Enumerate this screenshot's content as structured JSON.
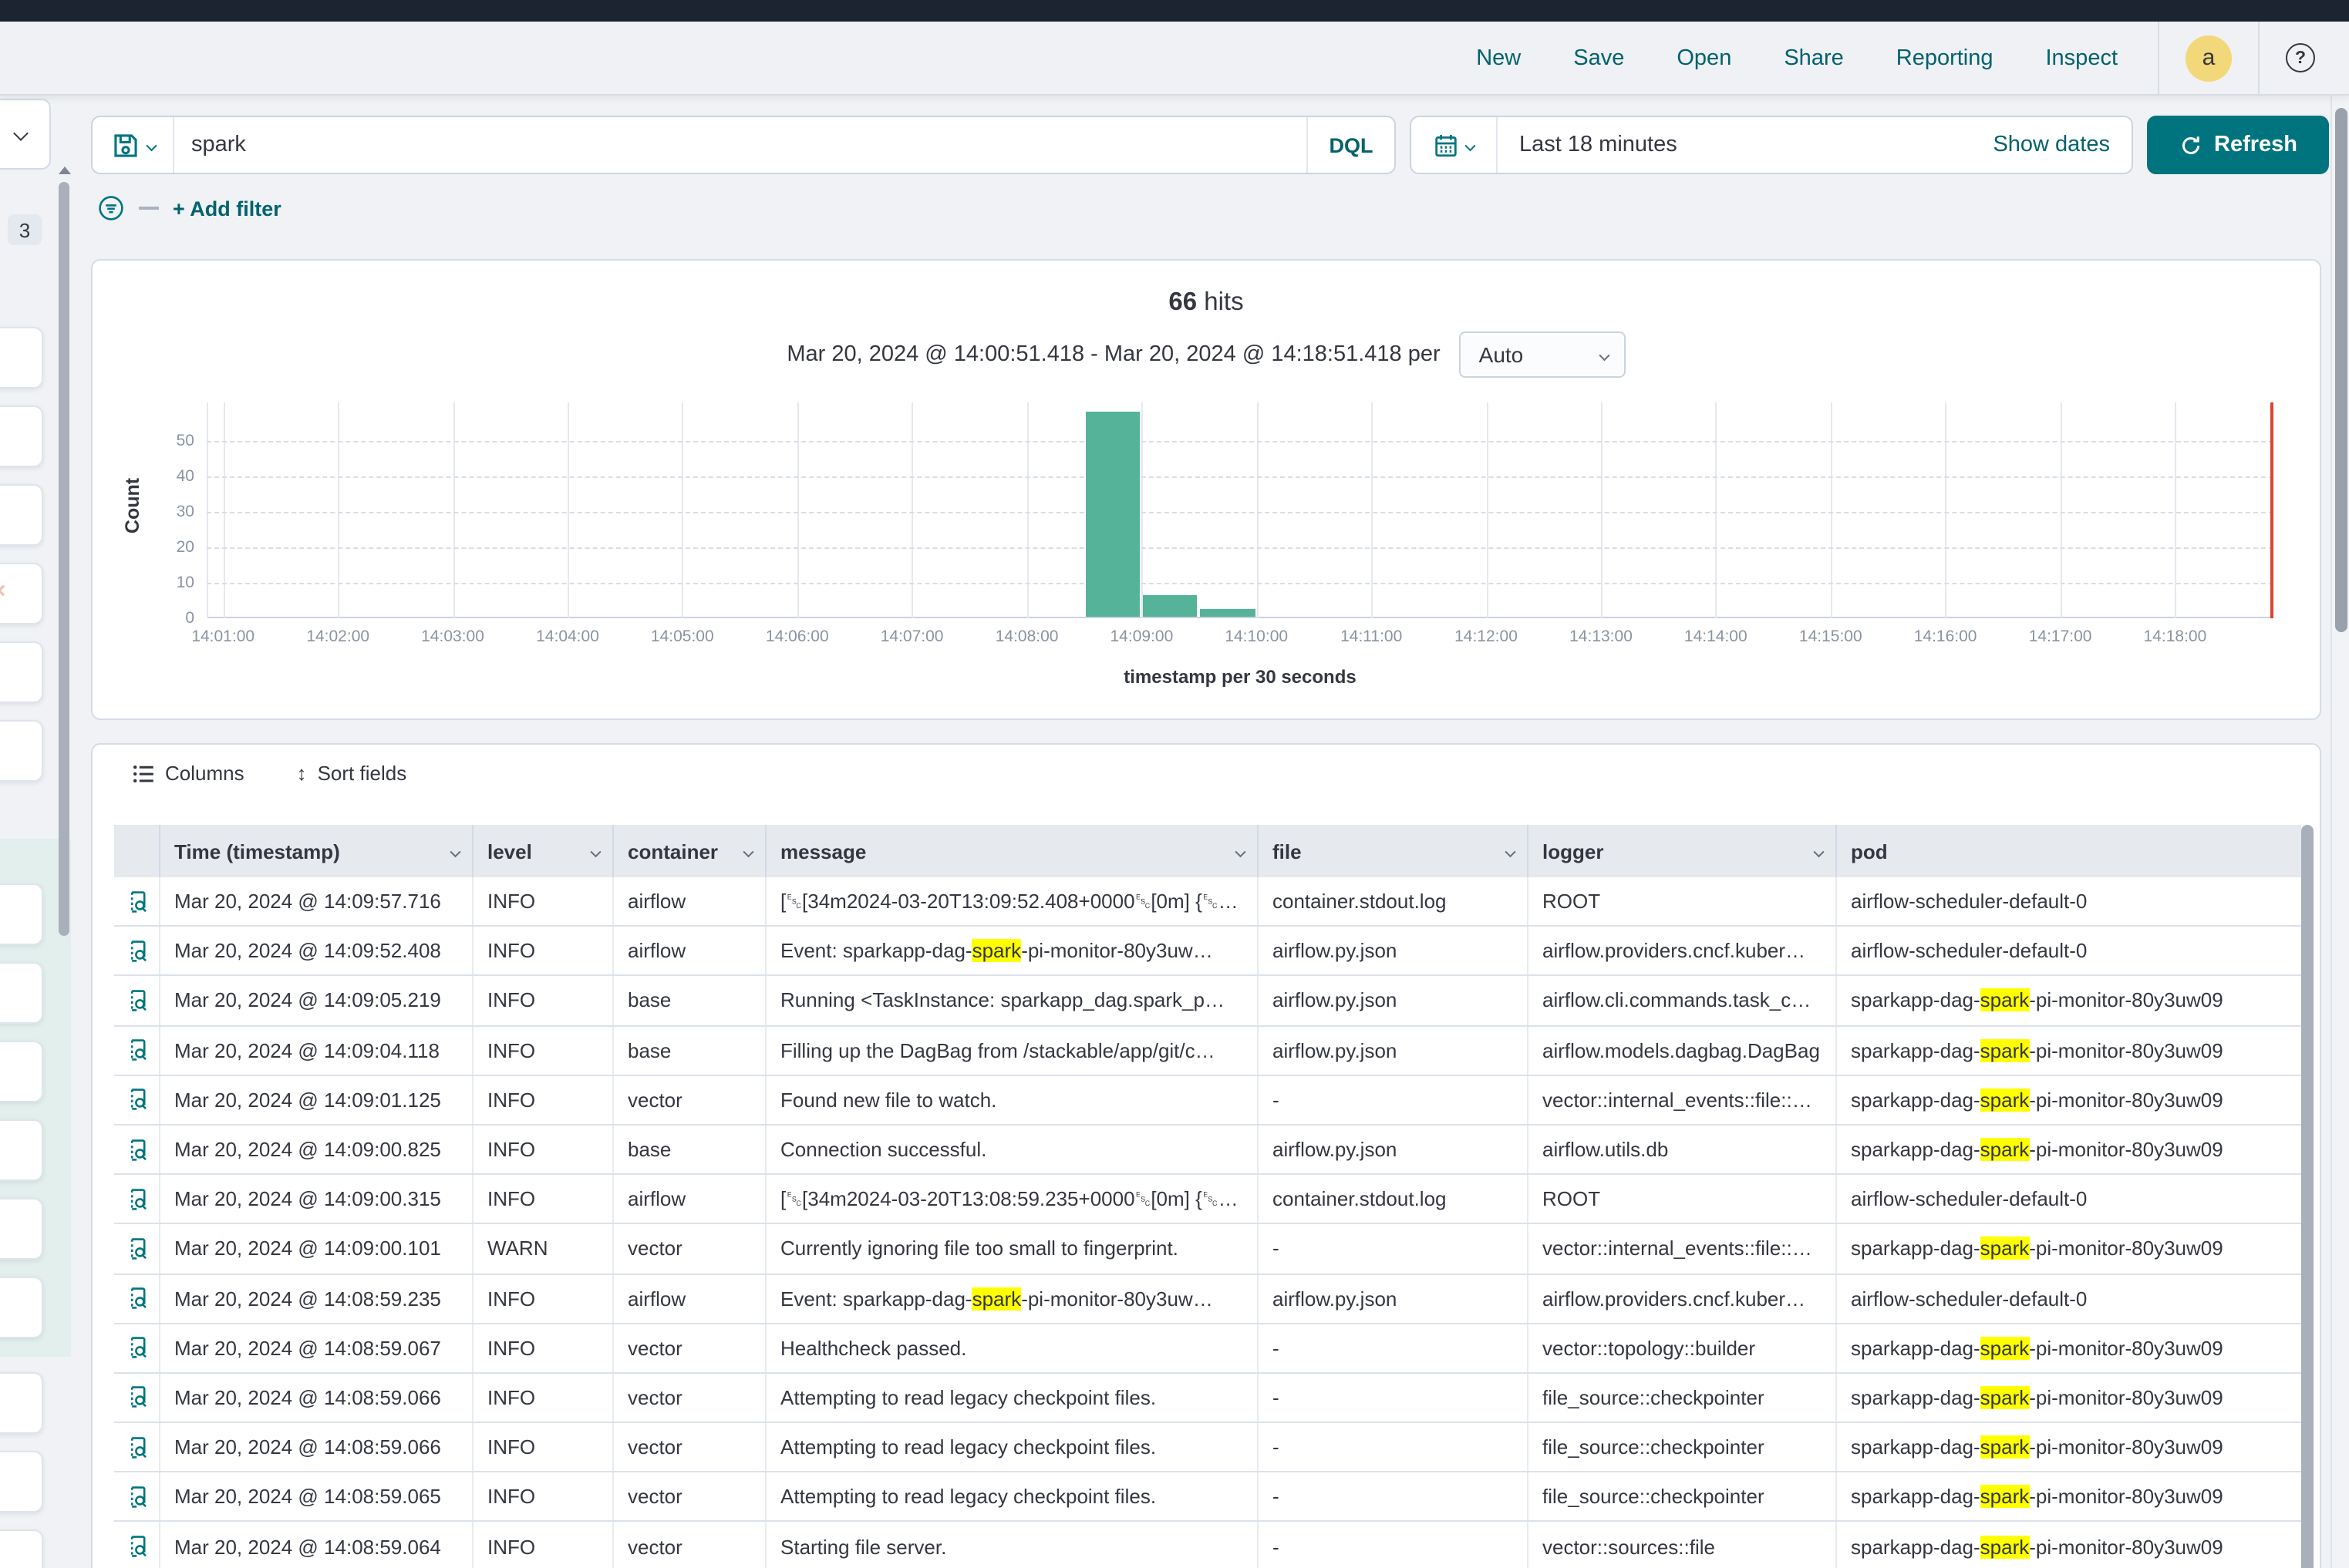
{
  "colors": {
    "accent_text": "#00626d",
    "primary_button": "#00747e",
    "bar_fill": "#54b399",
    "highlight": "#ffff00",
    "end_marker": "#e0422f",
    "titlebar": "#1b2430",
    "avatar_bg": "#f2d878"
  },
  "nav": {
    "links": [
      "New",
      "Save",
      "Open",
      "Share",
      "Reporting",
      "Inspect"
    ],
    "avatar": "a",
    "help": "?"
  },
  "search": {
    "query": "spark",
    "language_button": "DQL"
  },
  "timepicker": {
    "range_label": "Last 18 minutes",
    "show_dates_label": "Show dates",
    "refresh_label": "Refresh"
  },
  "filters": {
    "add_filter_label": "+ Add filter",
    "sidebar_badge": "3"
  },
  "histogram_header": {
    "hits_count": "66",
    "hits_word": "hits",
    "range": "Mar 20, 2024 @ 14:00:51.418 - Mar 20, 2024 @ 14:18:51.418",
    "per_word": "per",
    "interval_value": "Auto"
  },
  "chart_data": {
    "type": "bar",
    "title": "66 hits",
    "xlabel": "timestamp per 30 seconds",
    "ylabel": "Count",
    "x_start": "14:00:51.418",
    "x_end": "14:18:51.418",
    "x_ticks": [
      "14:01:00",
      "14:02:00",
      "14:03:00",
      "14:04:00",
      "14:05:00",
      "14:06:00",
      "14:07:00",
      "14:08:00",
      "14:09:00",
      "14:10:00",
      "14:11:00",
      "14:12:00",
      "14:13:00",
      "14:14:00",
      "14:15:00",
      "14:16:00",
      "14:17:00",
      "14:18:00"
    ],
    "y_ticks": [
      0,
      10,
      20,
      30,
      40,
      50
    ],
    "ylim": [
      0,
      60
    ],
    "bucket_seconds": 30,
    "buckets": [
      {
        "x": "14:08:30",
        "count": 58
      },
      {
        "x": "14:09:00",
        "count": 6
      },
      {
        "x": "14:09:30",
        "count": 2
      }
    ],
    "grid": true,
    "end_marker_at": "14:18:51.418"
  },
  "table": {
    "toolbar": {
      "columns_label": "Columns",
      "sort_label": "Sort fields"
    },
    "highlight_term": "spark",
    "columns": [
      {
        "label": "",
        "chevron": false
      },
      {
        "label": "Time (timestamp)",
        "chevron": true
      },
      {
        "label": "level",
        "chevron": true
      },
      {
        "label": "container",
        "chevron": true
      },
      {
        "label": "message",
        "chevron": true
      },
      {
        "label": "file",
        "chevron": true
      },
      {
        "label": "logger",
        "chevron": true
      },
      {
        "label": "pod",
        "chevron": false
      }
    ],
    "rows": [
      {
        "time": "Mar 20, 2024 @ 14:09:57.716",
        "level": "INFO",
        "container": "airflow",
        "message": "[␛[34m2024-03-20T13:09:52.408+0000␛[0m] {␛…",
        "file": "container.stdout.log",
        "logger": "ROOT",
        "pod": "airflow-scheduler-default-0"
      },
      {
        "time": "Mar 20, 2024 @ 14:09:52.408",
        "level": "INFO",
        "container": "airflow",
        "message": "Event: sparkapp-dag-[[spark]]-pi-monitor-80y3uw…",
        "file": "airflow.py.json",
        "logger": "airflow.providers.cncf.kuber…",
        "pod": "airflow-scheduler-default-0"
      },
      {
        "time": "Mar 20, 2024 @ 14:09:05.219",
        "level": "INFO",
        "container": "base",
        "message": "Running <TaskInstance: sparkapp_dag.spark_p…",
        "file": "airflow.py.json",
        "logger": "airflow.cli.commands.task_c…",
        "pod": "sparkapp-dag-[[spark]]-pi-monitor-80y3uw09"
      },
      {
        "time": "Mar 20, 2024 @ 14:09:04.118",
        "level": "INFO",
        "container": "base",
        "message": "Filling up the DagBag from /stackable/app/git/c…",
        "file": "airflow.py.json",
        "logger": "airflow.models.dagbag.DagBag",
        "pod": "sparkapp-dag-[[spark]]-pi-monitor-80y3uw09"
      },
      {
        "time": "Mar 20, 2024 @ 14:09:01.125",
        "level": "INFO",
        "container": "vector",
        "message": "Found new file to watch.",
        "file": "-",
        "logger": "vector::internal_events::file::…",
        "pod": "sparkapp-dag-[[spark]]-pi-monitor-80y3uw09"
      },
      {
        "time": "Mar 20, 2024 @ 14:09:00.825",
        "level": "INFO",
        "container": "base",
        "message": "Connection successful.",
        "file": "airflow.py.json",
        "logger": "airflow.utils.db",
        "pod": "sparkapp-dag-[[spark]]-pi-monitor-80y3uw09"
      },
      {
        "time": "Mar 20, 2024 @ 14:09:00.315",
        "level": "INFO",
        "container": "airflow",
        "message": "[␛[34m2024-03-20T13:08:59.235+0000␛[0m] {␛…",
        "file": "container.stdout.log",
        "logger": "ROOT",
        "pod": "airflow-scheduler-default-0"
      },
      {
        "time": "Mar 20, 2024 @ 14:09:00.101",
        "level": "WARN",
        "container": "vector",
        "message": "Currently ignoring file too small to fingerprint.",
        "file": "-",
        "logger": "vector::internal_events::file::…",
        "pod": "sparkapp-dag-[[spark]]-pi-monitor-80y3uw09"
      },
      {
        "time": "Mar 20, 2024 @ 14:08:59.235",
        "level": "INFO",
        "container": "airflow",
        "message": "Event: sparkapp-dag-[[spark]]-pi-monitor-80y3uw…",
        "file": "airflow.py.json",
        "logger": "airflow.providers.cncf.kuber…",
        "pod": "airflow-scheduler-default-0"
      },
      {
        "time": "Mar 20, 2024 @ 14:08:59.067",
        "level": "INFO",
        "container": "vector",
        "message": "Healthcheck passed.",
        "file": "-",
        "logger": "vector::topology::builder",
        "pod": "sparkapp-dag-[[spark]]-pi-monitor-80y3uw09"
      },
      {
        "time": "Mar 20, 2024 @ 14:08:59.066",
        "level": "INFO",
        "container": "vector",
        "message": "Attempting to read legacy checkpoint files.",
        "file": "-",
        "logger": "file_source::checkpointer",
        "pod": "sparkapp-dag-[[spark]]-pi-monitor-80y3uw09"
      },
      {
        "time": "Mar 20, 2024 @ 14:08:59.066",
        "level": "INFO",
        "container": "vector",
        "message": "Attempting to read legacy checkpoint files.",
        "file": "-",
        "logger": "file_source::checkpointer",
        "pod": "sparkapp-dag-[[spark]]-pi-monitor-80y3uw09"
      },
      {
        "time": "Mar 20, 2024 @ 14:08:59.065",
        "level": "INFO",
        "container": "vector",
        "message": "Attempting to read legacy checkpoint files.",
        "file": "-",
        "logger": "file_source::checkpointer",
        "pod": "sparkapp-dag-[[spark]]-pi-monitor-80y3uw09"
      },
      {
        "time": "Mar 20, 2024 @ 14:08:59.064",
        "level": "INFO",
        "container": "vector",
        "message": "Starting file server.",
        "file": "-",
        "logger": "vector::sources::file",
        "pod": "sparkapp-dag-[[spark]]-pi-monitor-80y3uw09"
      }
    ]
  }
}
